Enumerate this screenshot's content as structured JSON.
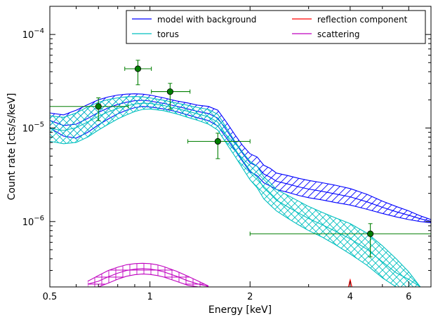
{
  "chart_data": {
    "type": "line",
    "x_scale": "log",
    "y_scale": "log",
    "xlim": [
      0.5,
      7.0
    ],
    "ylim": [
      2e-07,
      0.0002
    ],
    "xlabel": "Energy [keV]",
    "ylabel": "Count rate [cts/s/keV]",
    "x_ticks": [
      {
        "value": 0.5,
        "label": "0.5"
      },
      {
        "value": 1,
        "label": "1"
      },
      {
        "value": 2,
        "label": "2"
      },
      {
        "value": 4,
        "label": "4"
      },
      {
        "value": 6,
        "label": "6"
      }
    ],
    "y_ticks": [
      {
        "value": 1e-06,
        "base": "10",
        "exp": "-6"
      },
      {
        "value": 1e-05,
        "base": "10",
        "exp": "-5"
      },
      {
        "value": 0.0001,
        "base": "10",
        "exp": "-4"
      }
    ],
    "legend": {
      "position": "top-right",
      "entries": [
        {
          "label": "model with background",
          "color": "#0000ff"
        },
        {
          "label": "reflection component",
          "color": "#ff0000"
        },
        {
          "label": "torus",
          "color": "#00bfbf"
        },
        {
          "label": "scattering",
          "color": "#bf00bf"
        }
      ]
    },
    "bands": [
      {
        "name": "model with background",
        "color": "#0000ff",
        "hatch": "diagonal",
        "x": [
          0.5,
          0.55,
          0.6,
          0.65,
          0.7,
          0.75,
          0.8,
          0.85,
          0.9,
          0.95,
          1.0,
          1.1,
          1.2,
          1.3,
          1.4,
          1.5,
          1.6,
          1.7,
          1.8,
          1.9,
          2.0,
          2.1,
          2.2,
          2.3,
          2.4,
          2.6,
          2.8,
          3.0,
          3.3,
          3.6,
          4.0,
          4.5,
          5.0,
          5.5,
          6.0,
          6.5,
          7.0
        ],
        "upper": [
          1.45e-05,
          1.38e-05,
          1.55e-05,
          1.78e-05,
          2e-05,
          2.15e-05,
          2.25e-05,
          2.3e-05,
          2.32e-05,
          2.3e-05,
          2.25e-05,
          2.1e-05,
          1.95e-05,
          1.85e-05,
          1.75e-05,
          1.7e-05,
          1.55e-05,
          1.15e-05,
          8.5e-06,
          6.5e-06,
          5.3e-06,
          4.9e-06,
          4e-06,
          3.7e-06,
          3.3e-06,
          3.1e-06,
          2.9e-06,
          2.75e-06,
          2.6e-06,
          2.45e-06,
          2.25e-06,
          1.95e-06,
          1.65e-06,
          1.45e-06,
          1.3e-06,
          1.15e-06,
          1.05e-06
        ],
        "lower": [
          1e-05,
          8.2e-06,
          7.8e-06,
          9e-06,
          1.08e-05,
          1.25e-05,
          1.42e-05,
          1.55e-05,
          1.65e-05,
          1.7e-05,
          1.68e-05,
          1.6e-05,
          1.5e-05,
          1.38e-05,
          1.28e-05,
          1.2e-05,
          1.05e-05,
          7.8e-06,
          5.8e-06,
          4.4e-06,
          3.4e-06,
          3.1e-06,
          2.6e-06,
          2.4e-06,
          2.2e-06,
          2.05e-06,
          1.9e-06,
          1.8e-06,
          1.7e-06,
          1.6e-06,
          1.5e-06,
          1.35e-06,
          1.22e-06,
          1.12e-06,
          1.05e-06,
          1e-06,
          9.7e-07
        ]
      },
      {
        "name": "torus",
        "color": "#00bfbf",
        "hatch": "cross",
        "x": [
          0.5,
          0.55,
          0.6,
          0.65,
          0.7,
          0.75,
          0.8,
          0.85,
          0.9,
          0.95,
          1.0,
          1.1,
          1.2,
          1.3,
          1.4,
          1.5,
          1.6,
          1.7,
          1.8,
          1.9,
          2.0,
          2.1,
          2.2,
          2.3,
          2.4,
          2.6,
          2.8,
          3.0,
          3.3,
          3.6,
          4.0,
          4.5,
          5.0,
          5.5,
          6.0,
          6.5
        ],
        "upper": [
          1.35e-05,
          1.3e-05,
          1.45e-05,
          1.68e-05,
          1.88e-05,
          2.02e-05,
          2.1e-05,
          2.15e-05,
          2.17e-05,
          2.15e-05,
          2.1e-05,
          1.98e-05,
          1.85e-05,
          1.75e-05,
          1.65e-05,
          1.58e-05,
          1.4e-05,
          1e-05,
          7.2e-06,
          5.5e-06,
          4.4e-06,
          3.9e-06,
          3e-06,
          2.6e-06,
          2.2e-06,
          1.9e-06,
          1.65e-06,
          1.45e-06,
          1.25e-06,
          1.1e-06,
          9.5e-07,
          7.5e-07,
          5.5e-07,
          4e-07,
          2.9e-07,
          2e-07
        ],
        "lower": [
          7.2e-06,
          6.8e-06,
          7e-06,
          8e-06,
          9.5e-06,
          1.1e-05,
          1.25e-05,
          1.38e-05,
          1.5e-05,
          1.58e-05,
          1.6e-05,
          1.53e-05,
          1.42e-05,
          1.3e-05,
          1.2e-05,
          1.1e-05,
          9.5e-06,
          6.8e-06,
          5e-06,
          3.7e-06,
          2.8e-06,
          2.3e-06,
          1.75e-06,
          1.5e-06,
          1.3e-06,
          1.08e-06,
          9.2e-07,
          8e-07,
          6.8e-07,
          5.7e-07,
          4.5e-07,
          3.4e-07,
          2.5e-07,
          2e-07,
          2e-07,
          2e-07
        ]
      },
      {
        "name": "scattering",
        "color": "#bf00bf",
        "hatch": "grid",
        "x": [
          0.65,
          0.7,
          0.75,
          0.8,
          0.85,
          0.9,
          0.95,
          1.0,
          1.05,
          1.1,
          1.2,
          1.3,
          1.4,
          1.5
        ],
        "upper": [
          2.3e-07,
          2.65e-07,
          3e-07,
          3.25e-07,
          3.45e-07,
          3.55e-07,
          3.58e-07,
          3.55e-07,
          3.45e-07,
          3.3e-07,
          2.95e-07,
          2.6e-07,
          2.3e-07,
          2.05e-07
        ],
        "lower": [
          2e-07,
          2e-07,
          2.2e-07,
          2.42e-07,
          2.6e-07,
          2.7e-07,
          2.75e-07,
          2.72e-07,
          2.65e-07,
          2.55e-07,
          2.3e-07,
          2.08e-07,
          2e-07,
          2e-07
        ]
      }
    ],
    "reflection_line": {
      "name": "reflection component",
      "color": "#ff0000",
      "x": [
        3.95,
        3.97,
        3.99,
        4.0,
        4.01,
        4.03,
        4.05
      ],
      "y": [
        2e-07,
        2.12e-07,
        2.3e-07,
        2.38e-07,
        2.3e-07,
        2.12e-07,
        2e-07
      ]
    },
    "data_points": [
      {
        "x": 0.7,
        "y": 1.7e-05,
        "xlo": 0.5,
        "xhi": 0.86,
        "ylo": 1.2e-05,
        "yhi": 2.1e-05
      },
      {
        "x": 0.92,
        "y": 4.3e-05,
        "xlo": 0.84,
        "xhi": 1.01,
        "ylo": 2.9e-05,
        "yhi": 5.3e-05
      },
      {
        "x": 1.15,
        "y": 2.45e-05,
        "xlo": 1.01,
        "xhi": 1.32,
        "ylo": 1.6e-05,
        "yhi": 3e-05
      },
      {
        "x": 1.6,
        "y": 7.2e-06,
        "xlo": 1.3,
        "xhi": 2.0,
        "ylo": 4.7e-06,
        "yhi": 8.8e-06
      },
      {
        "x": 4.6,
        "y": 7.4e-07,
        "xlo": 2.0,
        "xhi": 7.0,
        "ylo": 4.2e-07,
        "yhi": 9.5e-07
      }
    ],
    "data_color": "#007f00"
  }
}
